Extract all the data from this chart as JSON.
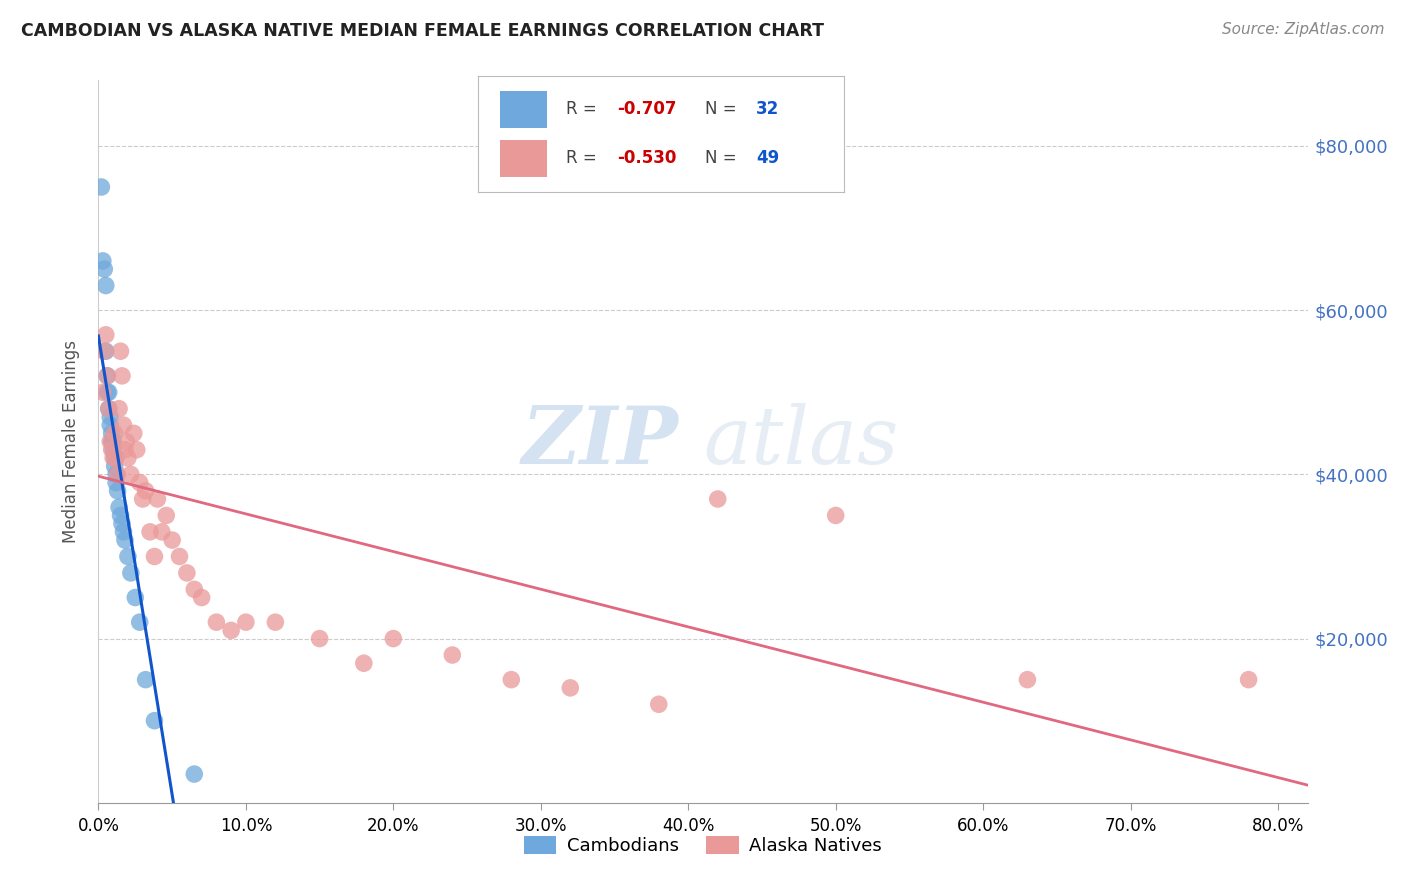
{
  "title": "CAMBODIAN VS ALASKA NATIVE MEDIAN FEMALE EARNINGS CORRELATION CHART",
  "source": "Source: ZipAtlas.com",
  "ylabel": "Median Female Earnings",
  "ytick_labels": [
    "$20,000",
    "$40,000",
    "$60,000",
    "$80,000"
  ],
  "ytick_values": [
    20000,
    40000,
    60000,
    80000
  ],
  "xlim": [
    0.0,
    0.82
  ],
  "ylim": [
    0,
    88000
  ],
  "color_cambodian": "#6fa8dc",
  "color_alaska": "#ea9999",
  "color_line_cambodian": "#1155cc",
  "color_line_alaska": "#e06880",
  "watermark_zip": "ZIP",
  "watermark_atlas": "atlas",
  "cambodian_x": [
    0.002,
    0.003,
    0.004,
    0.005,
    0.005,
    0.006,
    0.006,
    0.007,
    0.007,
    0.008,
    0.008,
    0.009,
    0.009,
    0.01,
    0.01,
    0.011,
    0.011,
    0.012,
    0.012,
    0.013,
    0.014,
    0.015,
    0.016,
    0.017,
    0.018,
    0.02,
    0.022,
    0.025,
    0.028,
    0.032,
    0.038,
    0.065
  ],
  "cambodian_y": [
    75000,
    66000,
    65000,
    63000,
    55000,
    52000,
    50000,
    50000,
    48000,
    47000,
    46000,
    45000,
    44000,
    44000,
    43000,
    42000,
    41000,
    40000,
    39000,
    38000,
    36000,
    35000,
    34000,
    33000,
    32000,
    30000,
    28000,
    25000,
    22000,
    15000,
    10000,
    3500
  ],
  "alaska_x": [
    0.003,
    0.004,
    0.005,
    0.006,
    0.007,
    0.008,
    0.009,
    0.01,
    0.011,
    0.012,
    0.013,
    0.014,
    0.015,
    0.016,
    0.017,
    0.018,
    0.019,
    0.02,
    0.022,
    0.024,
    0.026,
    0.028,
    0.03,
    0.032,
    0.035,
    0.038,
    0.04,
    0.043,
    0.046,
    0.05,
    0.055,
    0.06,
    0.065,
    0.07,
    0.08,
    0.09,
    0.1,
    0.12,
    0.15,
    0.18,
    0.2,
    0.24,
    0.28,
    0.32,
    0.38,
    0.42,
    0.5,
    0.63,
    0.78
  ],
  "alaska_y": [
    50000,
    55000,
    57000,
    52000,
    48000,
    44000,
    43000,
    42000,
    45000,
    42000,
    40000,
    48000,
    55000,
    52000,
    46000,
    43000,
    44000,
    42000,
    40000,
    45000,
    43000,
    39000,
    37000,
    38000,
    33000,
    30000,
    37000,
    33000,
    35000,
    32000,
    30000,
    28000,
    26000,
    25000,
    22000,
    21000,
    22000,
    22000,
    20000,
    17000,
    20000,
    18000,
    15000,
    14000,
    12000,
    37000,
    35000,
    15000,
    15000
  ]
}
